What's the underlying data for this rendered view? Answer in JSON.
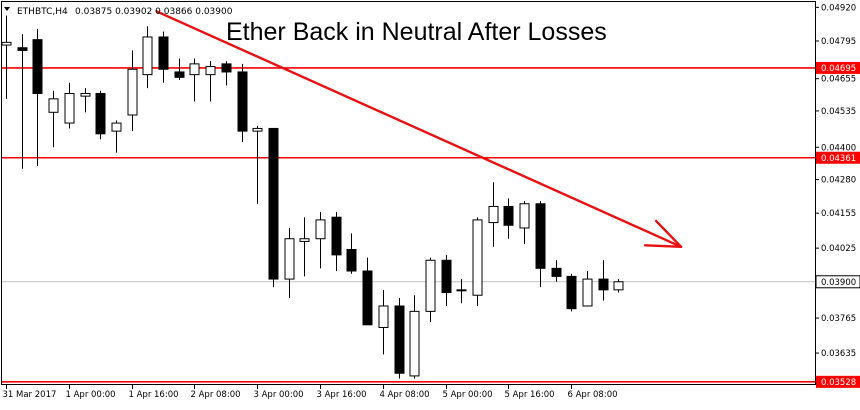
{
  "header": {
    "symbol": "ETHBTC,H4",
    "ohlc": "0.03875 0.03902 0.03866 0.03900"
  },
  "chart_data": {
    "type": "candlestick",
    "title": "Ether Back in Neutral After Losses",
    "ylim": [
      0.0352,
      0.0494
    ],
    "y_ticks": [
      "0.04920",
      "0.04795",
      "0.04655",
      "0.04535",
      "0.04400",
      "0.04280",
      "0.04155",
      "0.04025",
      "0.03900",
      "0.03765",
      "0.03635"
    ],
    "x_ticks": [
      {
        "index": 0,
        "label": "31 Mar 2017"
      },
      {
        "index": 4,
        "label": "1 Apr 00:00"
      },
      {
        "index": 8,
        "label": "1 Apr 16:00"
      },
      {
        "index": 12,
        "label": "2 Apr 08:00"
      },
      {
        "index": 16,
        "label": "3 Apr 00:00"
      },
      {
        "index": 20,
        "label": "3 Apr 16:00"
      },
      {
        "index": 24,
        "label": "4 Apr 08:00"
      },
      {
        "index": 28,
        "label": "5 Apr 00:00"
      },
      {
        "index": 32,
        "label": "5 Apr 16:00"
      },
      {
        "index": 36,
        "label": "6 Apr 08:00"
      }
    ],
    "candles": [
      {
        "o": 0.0478,
        "h": 0.0489,
        "l": 0.0458,
        "c": 0.0479
      },
      {
        "o": 0.0477,
        "h": 0.0482,
        "l": 0.0432,
        "c": 0.0476
      },
      {
        "o": 0.048,
        "h": 0.0484,
        "l": 0.0433,
        "c": 0.046
      },
      {
        "o": 0.0453,
        "h": 0.0461,
        "l": 0.044,
        "c": 0.0458
      },
      {
        "o": 0.0449,
        "h": 0.0464,
        "l": 0.0447,
        "c": 0.046
      },
      {
        "o": 0.0459,
        "h": 0.0462,
        "l": 0.0453,
        "c": 0.046
      },
      {
        "o": 0.046,
        "h": 0.0461,
        "l": 0.0443,
        "c": 0.0445
      },
      {
        "o": 0.0446,
        "h": 0.045,
        "l": 0.0438,
        "c": 0.0449
      },
      {
        "o": 0.0452,
        "h": 0.0476,
        "l": 0.0446,
        "c": 0.0469
      },
      {
        "o": 0.0467,
        "h": 0.0485,
        "l": 0.0462,
        "c": 0.0481
      },
      {
        "o": 0.0481,
        "h": 0.0483,
        "l": 0.0464,
        "c": 0.0469
      },
      {
        "o": 0.0468,
        "h": 0.0473,
        "l": 0.0465,
        "c": 0.0466
      },
      {
        "o": 0.0467,
        "h": 0.0473,
        "l": 0.0457,
        "c": 0.0471
      },
      {
        "o": 0.0467,
        "h": 0.0472,
        "l": 0.0457,
        "c": 0.047
      },
      {
        "o": 0.0471,
        "h": 0.0472,
        "l": 0.0463,
        "c": 0.0468
      },
      {
        "o": 0.0468,
        "h": 0.0471,
        "l": 0.0442,
        "c": 0.0446
      },
      {
        "o": 0.0446,
        "h": 0.0448,
        "l": 0.0419,
        "c": 0.0447
      },
      {
        "o": 0.0447,
        "h": 0.0447,
        "l": 0.0388,
        "c": 0.0391
      },
      {
        "o": 0.0391,
        "h": 0.041,
        "l": 0.0384,
        "c": 0.0406
      },
      {
        "o": 0.0405,
        "h": 0.0414,
        "l": 0.0392,
        "c": 0.0406
      },
      {
        "o": 0.0406,
        "h": 0.0416,
        "l": 0.0395,
        "c": 0.0413
      },
      {
        "o": 0.0414,
        "h": 0.0416,
        "l": 0.0394,
        "c": 0.04
      },
      {
        "o": 0.0402,
        "h": 0.0408,
        "l": 0.0393,
        "c": 0.0394
      },
      {
        "o": 0.0394,
        "h": 0.0399,
        "l": 0.0374,
        "c": 0.0374
      },
      {
        "o": 0.0373,
        "h": 0.0387,
        "l": 0.0363,
        "c": 0.0381
      },
      {
        "o": 0.0381,
        "h": 0.0384,
        "l": 0.0354,
        "c": 0.0356
      },
      {
        "o": 0.0355,
        "h": 0.0385,
        "l": 0.0354,
        "c": 0.0379
      },
      {
        "o": 0.0379,
        "h": 0.0399,
        "l": 0.0375,
        "c": 0.0398
      },
      {
        "o": 0.0398,
        "h": 0.04,
        "l": 0.0381,
        "c": 0.0386
      },
      {
        "o": 0.0387,
        "h": 0.0391,
        "l": 0.0382,
        "c": 0.0387
      },
      {
        "o": 0.0385,
        "h": 0.0414,
        "l": 0.0381,
        "c": 0.0413
      },
      {
        "o": 0.0412,
        "h": 0.0427,
        "l": 0.0403,
        "c": 0.0418
      },
      {
        "o": 0.0418,
        "h": 0.0421,
        "l": 0.0406,
        "c": 0.0411
      },
      {
        "o": 0.041,
        "h": 0.042,
        "l": 0.0404,
        "c": 0.0419
      },
      {
        "o": 0.0419,
        "h": 0.042,
        "l": 0.0388,
        "c": 0.0395
      },
      {
        "o": 0.0395,
        "h": 0.0398,
        "l": 0.039,
        "c": 0.0392
      },
      {
        "o": 0.0392,
        "h": 0.0393,
        "l": 0.0379,
        "c": 0.038
      },
      {
        "o": 0.0381,
        "h": 0.0394,
        "l": 0.0381,
        "c": 0.0391
      },
      {
        "o": 0.0391,
        "h": 0.0398,
        "l": 0.0383,
        "c": 0.0387
      },
      {
        "o": 0.0387,
        "h": 0.0391,
        "l": 0.0386,
        "c": 0.039
      }
    ],
    "levels": [
      {
        "value": 0.04695,
        "label": "0.04695"
      },
      {
        "value": 0.04361,
        "label": "0.04361"
      },
      {
        "value": 0.03528,
        "label": "0.03528"
      }
    ],
    "current_price": {
      "value": 0.039,
      "label": "0.03900"
    },
    "trendline": {
      "from": {
        "index": 9.6,
        "value": 0.04905
      },
      "to": {
        "index": 43.0,
        "value": 0.0403
      }
    },
    "colors": {
      "level": "#ff0000",
      "trendline": "#e81010",
      "bull_fill": "#ffffff",
      "bear_fill": "#000000",
      "candle_outline": "#000000",
      "price_line": "#c0c0c0"
    }
  }
}
